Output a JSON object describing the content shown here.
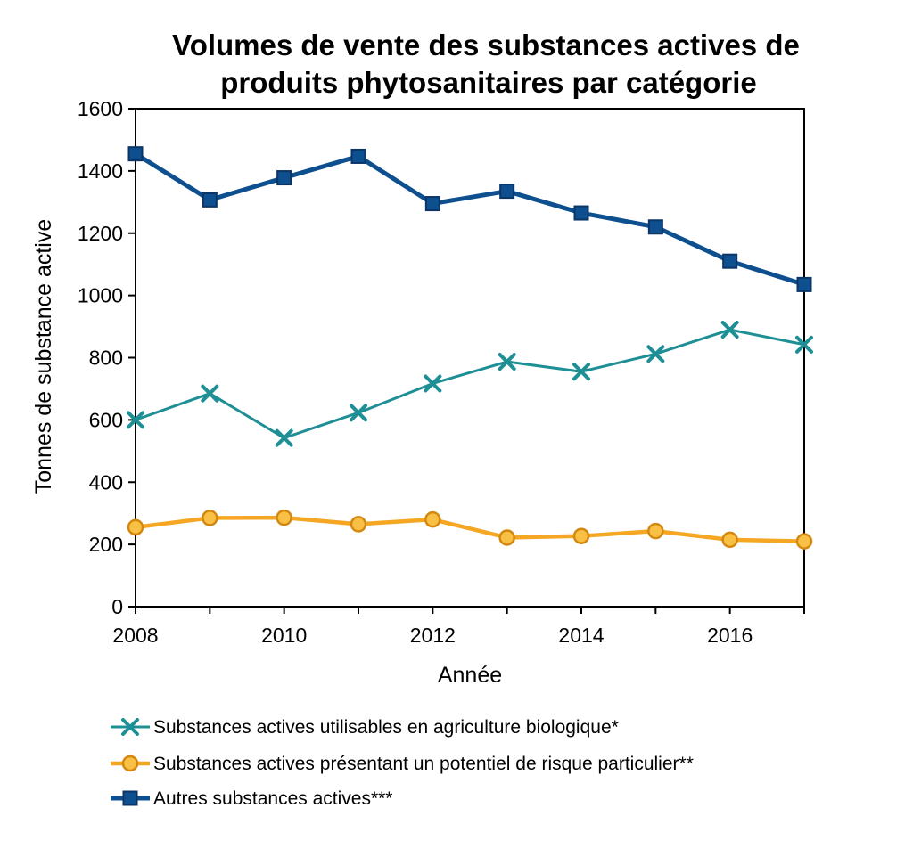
{
  "chart_data": {
    "type": "line",
    "title_lines": [
      "Volumes de vente des substances actives de",
      "produits phytosanitaires par catégorie"
    ],
    "xlabel": "Année",
    "ylabel": "Tonnes de substance active",
    "ylim": [
      0,
      1600
    ],
    "xlim": [
      2008,
      2017
    ],
    "yticks": [
      0,
      200,
      400,
      600,
      800,
      1000,
      1200,
      1400,
      1600
    ],
    "xticks": [
      2008,
      2010,
      2012,
      2014,
      2016
    ],
    "grid": false,
    "legend_position": "bottom",
    "x": [
      2008,
      2009,
      2010,
      2011,
      2012,
      2013,
      2014,
      2015,
      2016,
      2017
    ],
    "series": [
      {
        "name": "Substances actives utilisables en agriculture biologique*",
        "marker": "x",
        "color": "#1f8f96",
        "values": [
          600,
          685,
          542,
          623,
          717,
          787,
          755,
          812,
          890,
          842
        ]
      },
      {
        "name": "Substances actives présentant un potentiel de risque particulier**",
        "marker": "circle",
        "color": "#f5a623",
        "values": [
          255,
          285,
          286,
          265,
          280,
          222,
          227,
          243,
          215,
          210
        ]
      },
      {
        "name": "Autres substances actives***",
        "marker": "square",
        "color": "#0e4f8f",
        "values": [
          1455,
          1307,
          1378,
          1447,
          1295,
          1335,
          1265,
          1220,
          1110,
          1035
        ]
      }
    ]
  }
}
